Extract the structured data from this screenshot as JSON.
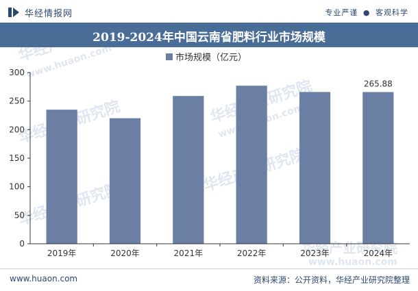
{
  "header": {
    "brand": "华经情报网",
    "slogan_left": "专业严谨",
    "slogan_sep": "●",
    "slogan_right": "客观科学"
  },
  "footer": {
    "website": "www.huaon.com",
    "source": "资料来源：公开资料，华经产业研究院整理"
  },
  "watermark": {
    "text": "华经产业研究院",
    "url": "www.huaon.com"
  },
  "colors": {
    "bar": "#6b7ea3",
    "title_bg": "#4a6d97",
    "axis": "#333333"
  },
  "chart_data": {
    "type": "bar",
    "title": "2019-2024年中国云南省肥料行业市场规模",
    "legend": "市场规模（亿元）",
    "categories": [
      "2019年",
      "2020年",
      "2021年",
      "2022年",
      "2023年",
      "2024年"
    ],
    "values": [
      235,
      220,
      259,
      277,
      266,
      265.88
    ],
    "data_labels": [
      "",
      "",
      "",
      "",
      "",
      "265.88"
    ],
    "yticks": [
      "0",
      "50",
      "100",
      "150",
      "200",
      "250",
      "300"
    ],
    "ylim": [
      0,
      300
    ],
    "xlabel": "",
    "ylabel": "",
    "grid": false
  }
}
